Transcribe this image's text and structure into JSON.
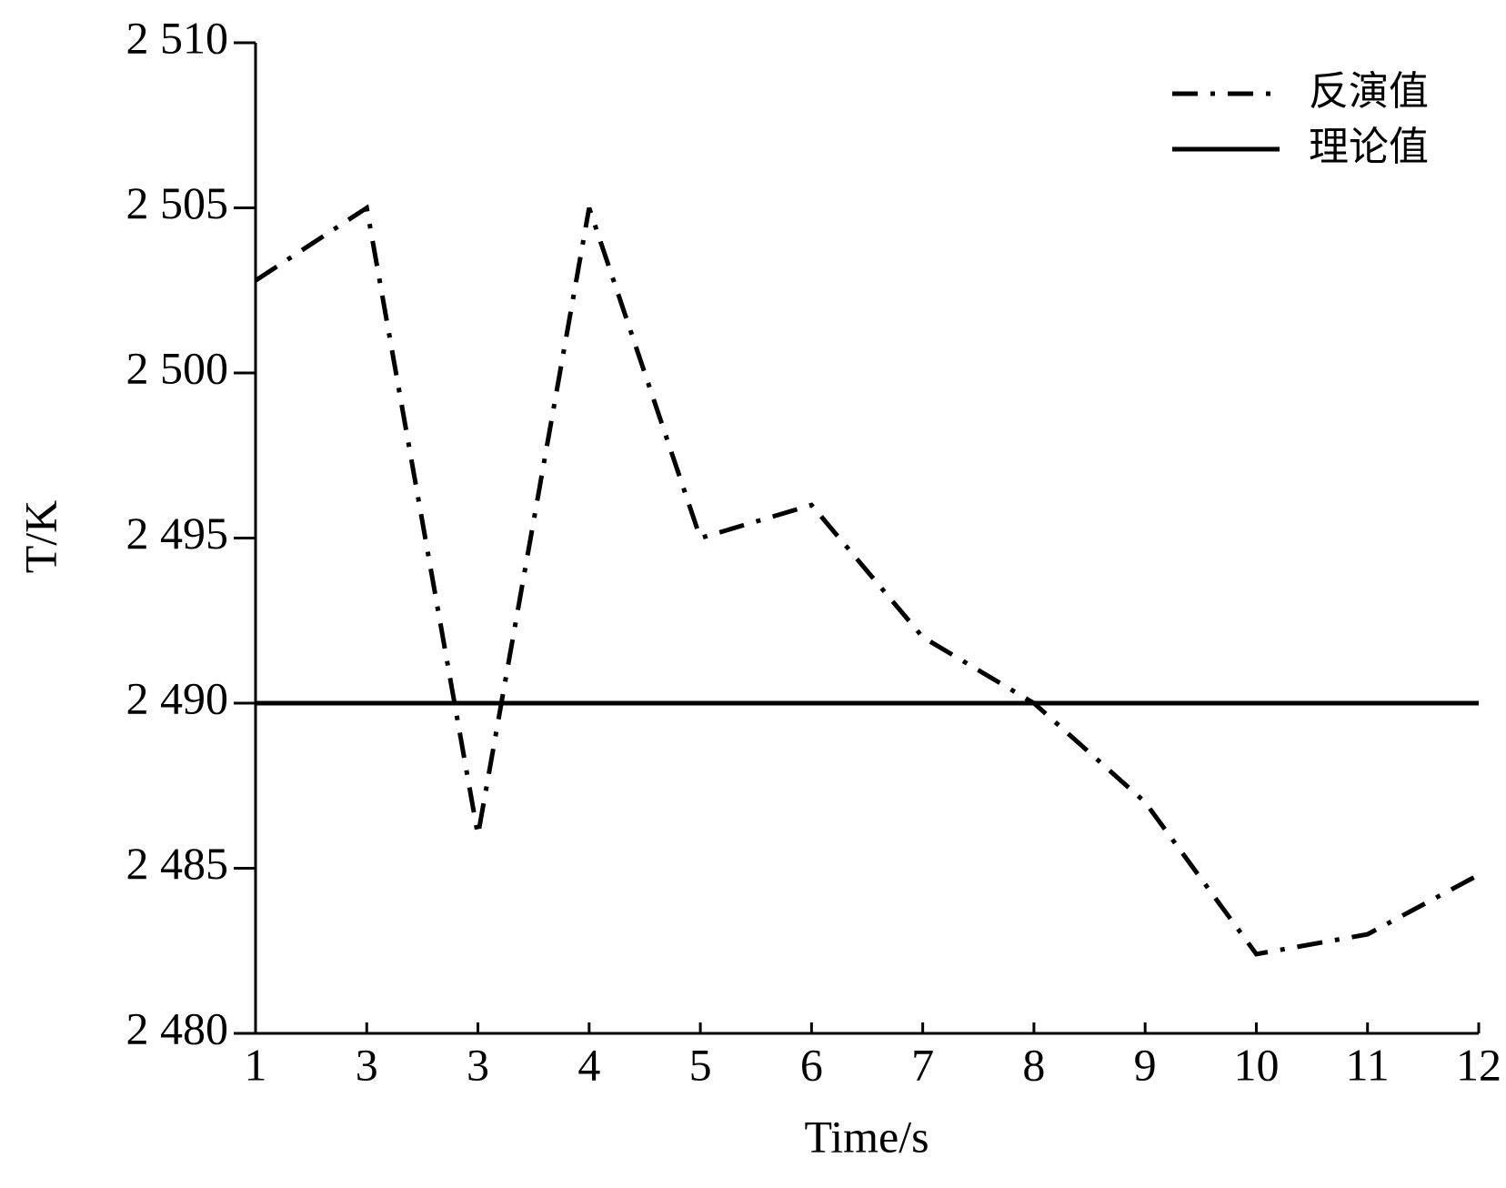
{
  "chart_data": {
    "type": "line",
    "x_label": "Time/s",
    "y_label": "T/K",
    "categories": [
      "1",
      "3",
      "3",
      "4",
      "5",
      "6",
      "7",
      "8",
      "9",
      "10",
      "11",
      "12"
    ],
    "series": [
      {
        "name": "反演值",
        "color": "#000000",
        "style": "dashdot",
        "values": [
          2502.8,
          2505,
          2486,
          2505,
          2495,
          2496,
          2492,
          2490,
          2487,
          2482.4,
          2483,
          2484.8
        ]
      },
      {
        "name": "理论值",
        "color": "#000000",
        "style": "solid",
        "values": [
          2490,
          2490,
          2490,
          2490,
          2490,
          2490,
          2490,
          2490,
          2490,
          2490,
          2490,
          2490
        ]
      }
    ],
    "ylim": [
      2480,
      2510
    ],
    "yticks": [
      {
        "value": 2480,
        "label": "2 480"
      },
      {
        "value": 2485,
        "label": "2 485"
      },
      {
        "value": 2490,
        "label": "2 490"
      },
      {
        "value": 2495,
        "label": "2 495"
      },
      {
        "value": 2500,
        "label": "2 500"
      },
      {
        "value": 2505,
        "label": "2 505"
      },
      {
        "value": 2510,
        "label": "2 510"
      }
    ],
    "grid": false,
    "legend": "upper right"
  }
}
